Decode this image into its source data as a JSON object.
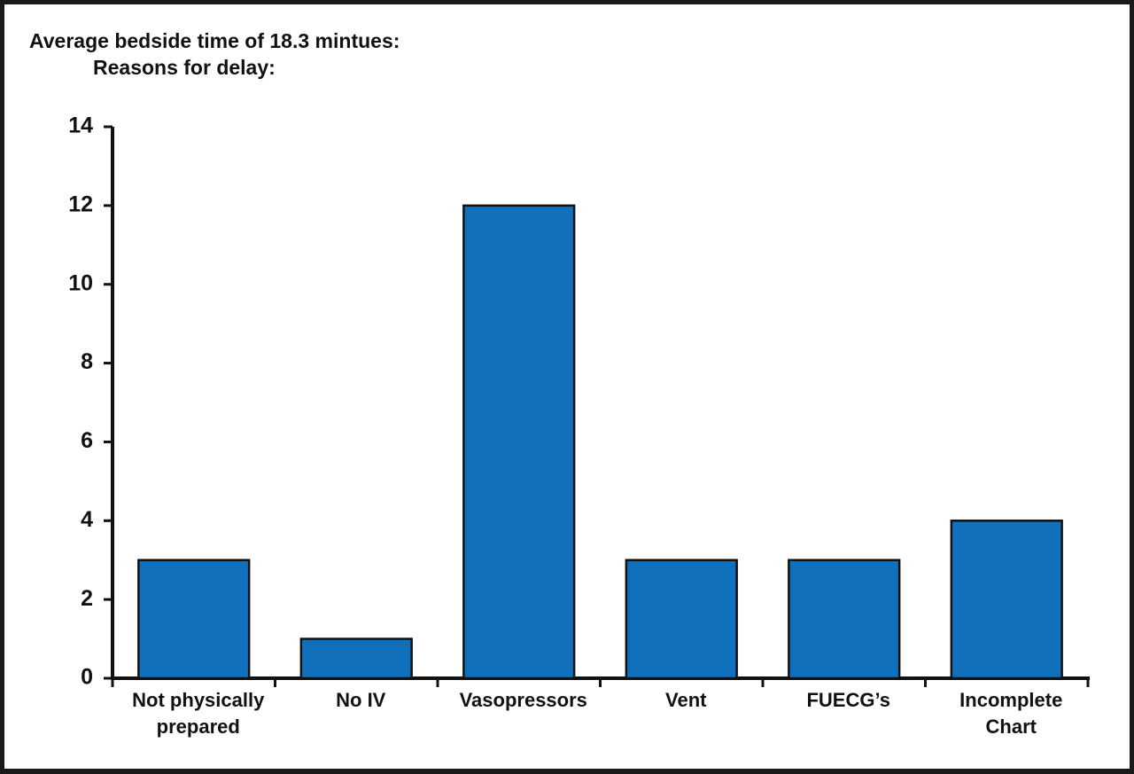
{
  "chart_data": {
    "type": "bar",
    "title": "Average bedside time of 18.3 mintues:",
    "subtitle": "Reasons for delay:",
    "categories": [
      "Not physically prepared",
      "No IV",
      "Vasopressors",
      "Vent",
      "FUECG’s",
      "Incomplete Chart"
    ],
    "values": [
      3,
      1,
      12,
      3,
      3,
      4
    ],
    "color": "#1170bb",
    "ylim": [
      0,
      14
    ],
    "yticks": [
      0,
      2,
      4,
      6,
      8,
      10,
      12,
      14
    ],
    "grid": false
  }
}
